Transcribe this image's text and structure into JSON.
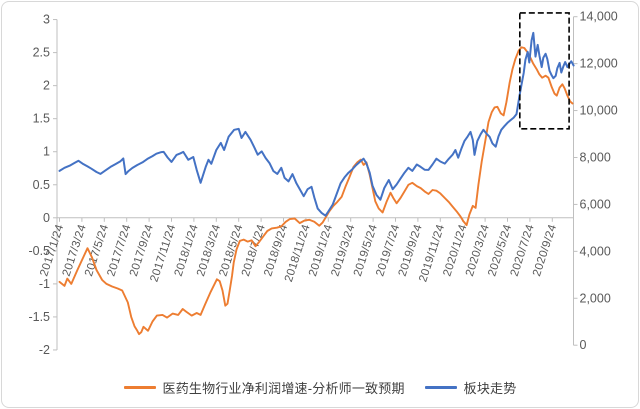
{
  "chart_data": {
    "type": "line",
    "title": "",
    "grid": false,
    "legend_position": "bottom",
    "x_tick_labels": [
      "2017/1/24",
      "2017/3/24",
      "2017/5/24",
      "2017/7/24",
      "2017/9/24",
      "2017/11/24",
      "2018/1/24",
      "2018/3/24",
      "2018/5/24",
      "2018/7/24",
      "2018/9/24",
      "2018/11/24",
      "2019/1/24",
      "2019/3/24",
      "2019/5/24",
      "2019/7/24",
      "2019/9/24",
      "2019/11/24",
      "2020/1/24",
      "2020/3/24",
      "2020/5/24",
      "2020/7/24",
      "2020/9/24"
    ],
    "x_months_per_tick": 2,
    "left_axis": {
      "min": -2,
      "max": 3,
      "step": 0.5,
      "tick_labels": [
        "3",
        "2.5",
        "2",
        "1.5",
        "1",
        "0.5",
        "0",
        "-0.5",
        "-1",
        "-1.5",
        "-2"
      ]
    },
    "right_axis": {
      "min": 0,
      "max": 14000,
      "step": 2000,
      "tick_labels": [
        "14,000",
        "12,000",
        "10,000",
        "8,000",
        "6,000",
        "4,000",
        "2,000",
        "0"
      ]
    },
    "colors": {
      "axis_line": "#bfbfbf",
      "tick_text": "#595959",
      "highlight_box": "#000000"
    },
    "highlight_box": {
      "m_start": 41.1,
      "m_end": 45.5,
      "right_min": 9220,
      "right_max": 14160
    },
    "series": [
      {
        "name": "医药生物行业净利润增速-分析师一致预期",
        "color": "#ED7D31",
        "axis": "left",
        "points": [
          [
            0.0,
            -0.97
          ],
          [
            0.45,
            -1.03
          ],
          [
            0.7,
            -0.92
          ],
          [
            1.05,
            -1.0
          ],
          [
            1.6,
            -0.79
          ],
          [
            2.2,
            -0.57
          ],
          [
            2.5,
            -0.46
          ],
          [
            2.9,
            -0.6
          ],
          [
            3.3,
            -0.79
          ],
          [
            3.8,
            -0.94
          ],
          [
            4.2,
            -1.0
          ],
          [
            4.7,
            -1.04
          ],
          [
            5.2,
            -1.07
          ],
          [
            5.6,
            -1.1
          ],
          [
            6.1,
            -1.28
          ],
          [
            6.4,
            -1.5
          ],
          [
            6.7,
            -1.64
          ],
          [
            6.95,
            -1.71
          ],
          [
            7.1,
            -1.76
          ],
          [
            7.3,
            -1.73
          ],
          [
            7.5,
            -1.65
          ],
          [
            7.9,
            -1.71
          ],
          [
            8.3,
            -1.57
          ],
          [
            8.7,
            -1.48
          ],
          [
            9.2,
            -1.47
          ],
          [
            9.6,
            -1.51
          ],
          [
            10.1,
            -1.45
          ],
          [
            10.6,
            -1.47
          ],
          [
            11.0,
            -1.38
          ],
          [
            11.3,
            -1.42
          ],
          [
            11.8,
            -1.48
          ],
          [
            12.25,
            -1.44
          ],
          [
            12.6,
            -1.47
          ],
          [
            13.0,
            -1.31
          ],
          [
            13.5,
            -1.12
          ],
          [
            14.05,
            -0.93
          ],
          [
            14.3,
            -0.96
          ],
          [
            14.55,
            -1.1
          ],
          [
            14.8,
            -1.33
          ],
          [
            15.0,
            -1.3
          ],
          [
            15.2,
            -1.1
          ],
          [
            15.4,
            -0.88
          ],
          [
            15.55,
            -0.68
          ],
          [
            15.8,
            -0.48
          ],
          [
            16.1,
            -0.35
          ],
          [
            16.45,
            -0.33
          ],
          [
            16.8,
            -0.36
          ],
          [
            17.15,
            -0.34
          ],
          [
            17.5,
            -0.43
          ],
          [
            17.85,
            -0.36
          ],
          [
            18.2,
            -0.28
          ],
          [
            18.55,
            -0.2
          ],
          [
            18.95,
            -0.16
          ],
          [
            19.4,
            -0.15
          ],
          [
            19.8,
            -0.13
          ],
          [
            20.2,
            -0.06
          ],
          [
            20.55,
            -0.02
          ],
          [
            21.0,
            -0.01
          ],
          [
            21.45,
            -0.08
          ],
          [
            21.9,
            -0.04
          ],
          [
            22.3,
            -0.03
          ],
          [
            22.75,
            -0.06
          ],
          [
            23.2,
            -0.12
          ],
          [
            23.5,
            -0.07
          ],
          [
            23.75,
            0.0
          ],
          [
            24.1,
            0.1
          ],
          [
            24.45,
            0.18
          ],
          [
            24.8,
            0.24
          ],
          [
            25.2,
            0.32
          ],
          [
            25.55,
            0.48
          ],
          [
            25.9,
            0.62
          ],
          [
            26.25,
            0.77
          ],
          [
            26.6,
            0.84
          ],
          [
            26.9,
            0.88
          ],
          [
            27.15,
            0.8
          ],
          [
            27.4,
            0.84
          ],
          [
            27.7,
            0.65
          ],
          [
            27.95,
            0.45
          ],
          [
            28.2,
            0.25
          ],
          [
            28.5,
            0.14
          ],
          [
            28.85,
            0.08
          ],
          [
            29.2,
            0.24
          ],
          [
            29.55,
            0.38
          ],
          [
            29.8,
            0.3
          ],
          [
            30.1,
            0.22
          ],
          [
            30.45,
            0.3
          ],
          [
            30.8,
            0.4
          ],
          [
            31.15,
            0.5
          ],
          [
            31.5,
            0.53
          ],
          [
            31.9,
            0.48
          ],
          [
            32.25,
            0.45
          ],
          [
            32.6,
            0.4
          ],
          [
            32.95,
            0.36
          ],
          [
            33.3,
            0.42
          ],
          [
            33.65,
            0.41
          ],
          [
            34.0,
            0.37
          ],
          [
            34.4,
            0.3
          ],
          [
            34.75,
            0.24
          ],
          [
            35.1,
            0.17
          ],
          [
            35.45,
            0.1
          ],
          [
            35.8,
            0.02
          ],
          [
            36.05,
            -0.05
          ],
          [
            36.35,
            -0.11
          ],
          [
            36.6,
            0.05
          ],
          [
            36.9,
            0.18
          ],
          [
            37.15,
            0.15
          ],
          [
            37.4,
            0.5
          ],
          [
            37.7,
            0.85
          ],
          [
            38.05,
            1.2
          ],
          [
            38.3,
            1.45
          ],
          [
            38.6,
            1.6
          ],
          [
            38.85,
            1.67
          ],
          [
            39.1,
            1.68
          ],
          [
            39.4,
            1.58
          ],
          [
            39.65,
            1.55
          ],
          [
            39.9,
            1.75
          ],
          [
            40.2,
            2.05
          ],
          [
            40.45,
            2.25
          ],
          [
            40.7,
            2.4
          ],
          [
            41.0,
            2.53
          ],
          [
            41.25,
            2.58
          ],
          [
            41.5,
            2.57
          ],
          [
            41.8,
            2.5
          ],
          [
            42.05,
            2.42
          ],
          [
            42.3,
            2.33
          ],
          [
            42.6,
            2.25
          ],
          [
            42.85,
            2.17
          ],
          [
            43.1,
            2.12
          ],
          [
            43.4,
            2.15
          ],
          [
            43.65,
            2.12
          ],
          [
            43.95,
            1.98
          ],
          [
            44.2,
            1.88
          ],
          [
            44.4,
            1.85
          ],
          [
            44.65,
            1.97
          ],
          [
            44.9,
            2.02
          ],
          [
            45.1,
            1.96
          ],
          [
            45.35,
            1.85
          ],
          [
            45.6,
            1.76
          ],
          [
            45.8,
            1.73
          ]
        ]
      },
      {
        "name": "板块走势",
        "color": "#4472C4",
        "axis": "right",
        "points": [
          [
            0.0,
            7430
          ],
          [
            0.45,
            7560
          ],
          [
            0.9,
            7650
          ],
          [
            1.35,
            7770
          ],
          [
            1.7,
            7860
          ],
          [
            2.05,
            7740
          ],
          [
            2.5,
            7620
          ],
          [
            2.85,
            7520
          ],
          [
            3.3,
            7380
          ],
          [
            3.65,
            7300
          ],
          [
            4.1,
            7450
          ],
          [
            4.55,
            7600
          ],
          [
            5.0,
            7720
          ],
          [
            5.45,
            7840
          ],
          [
            5.7,
            7960
          ],
          [
            5.9,
            7290
          ],
          [
            6.15,
            7420
          ],
          [
            6.5,
            7550
          ],
          [
            6.95,
            7680
          ],
          [
            7.4,
            7790
          ],
          [
            7.85,
            7940
          ],
          [
            8.3,
            8060
          ],
          [
            8.65,
            8160
          ],
          [
            9.1,
            8230
          ],
          [
            9.3,
            8240
          ],
          [
            9.65,
            8000
          ],
          [
            10.0,
            7810
          ],
          [
            10.45,
            8110
          ],
          [
            10.8,
            8180
          ],
          [
            11.05,
            8240
          ],
          [
            11.5,
            7900
          ],
          [
            11.95,
            8020
          ],
          [
            12.25,
            7470
          ],
          [
            12.6,
            6920
          ],
          [
            13.05,
            7600
          ],
          [
            13.3,
            7900
          ],
          [
            13.55,
            7730
          ],
          [
            14.0,
            8320
          ],
          [
            14.4,
            8620
          ],
          [
            14.7,
            8320
          ],
          [
            15.1,
            8880
          ],
          [
            15.6,
            9180
          ],
          [
            16.0,
            9220
          ],
          [
            16.25,
            8830
          ],
          [
            16.6,
            9090
          ],
          [
            17.05,
            8760
          ],
          [
            17.4,
            8420
          ],
          [
            17.7,
            8120
          ],
          [
            18.05,
            8260
          ],
          [
            18.4,
            7980
          ],
          [
            18.75,
            7760
          ],
          [
            19.1,
            7420
          ],
          [
            19.45,
            7300
          ],
          [
            19.8,
            7560
          ],
          [
            20.1,
            7130
          ],
          [
            20.45,
            6980
          ],
          [
            20.8,
            7290
          ],
          [
            21.15,
            6900
          ],
          [
            21.5,
            6610
          ],
          [
            21.8,
            6350
          ],
          [
            22.15,
            6650
          ],
          [
            22.5,
            6750
          ],
          [
            22.75,
            6300
          ],
          [
            23.05,
            5820
          ],
          [
            23.4,
            5640
          ],
          [
            23.75,
            5520
          ],
          [
            24.0,
            5700
          ],
          [
            24.4,
            6000
          ],
          [
            24.75,
            6450
          ],
          [
            25.1,
            6900
          ],
          [
            25.45,
            7150
          ],
          [
            25.8,
            7350
          ],
          [
            26.15,
            7500
          ],
          [
            26.5,
            7680
          ],
          [
            26.9,
            7850
          ],
          [
            27.15,
            7950
          ],
          [
            27.4,
            7750
          ],
          [
            27.7,
            7350
          ],
          [
            27.95,
            6800
          ],
          [
            28.3,
            6400
          ],
          [
            28.65,
            6200
          ],
          [
            29.0,
            6700
          ],
          [
            29.4,
            7040
          ],
          [
            29.75,
            6650
          ],
          [
            30.1,
            6850
          ],
          [
            30.45,
            7100
          ],
          [
            30.8,
            7350
          ],
          [
            31.15,
            7560
          ],
          [
            31.5,
            7430
          ],
          [
            31.9,
            7700
          ],
          [
            32.25,
            7600
          ],
          [
            32.6,
            7480
          ],
          [
            32.95,
            7470
          ],
          [
            33.3,
            7700
          ],
          [
            33.65,
            7950
          ],
          [
            34.0,
            7830
          ],
          [
            34.4,
            7740
          ],
          [
            34.75,
            7940
          ],
          [
            35.1,
            8120
          ],
          [
            35.35,
            8320
          ],
          [
            35.6,
            7990
          ],
          [
            35.9,
            8400
          ],
          [
            36.15,
            8700
          ],
          [
            36.45,
            8900
          ],
          [
            36.7,
            9090
          ],
          [
            36.9,
            8750
          ],
          [
            37.05,
            8110
          ],
          [
            37.3,
            8700
          ],
          [
            37.6,
            8990
          ],
          [
            37.85,
            9180
          ],
          [
            38.15,
            9000
          ],
          [
            38.4,
            8880
          ],
          [
            38.65,
            8600
          ],
          [
            38.95,
            8460
          ],
          [
            39.2,
            8900
          ],
          [
            39.45,
            9180
          ],
          [
            39.75,
            9350
          ],
          [
            40.0,
            9480
          ],
          [
            40.25,
            9580
          ],
          [
            40.55,
            9700
          ],
          [
            40.8,
            9850
          ],
          [
            41.05,
            10580
          ],
          [
            41.25,
            11100
          ],
          [
            41.45,
            11600
          ],
          [
            41.6,
            12160
          ],
          [
            41.8,
            12500
          ],
          [
            41.95,
            12050
          ],
          [
            42.15,
            13000
          ],
          [
            42.3,
            13310
          ],
          [
            42.5,
            12300
          ],
          [
            42.7,
            12800
          ],
          [
            42.85,
            12350
          ],
          [
            43.05,
            11850
          ],
          [
            43.2,
            12250
          ],
          [
            43.4,
            12420
          ],
          [
            43.55,
            12200
          ],
          [
            43.75,
            11700
          ],
          [
            43.95,
            11500
          ],
          [
            44.1,
            11380
          ],
          [
            44.3,
            11480
          ],
          [
            44.45,
            11800
          ],
          [
            44.65,
            12030
          ],
          [
            44.8,
            11620
          ],
          [
            45.0,
            11900
          ],
          [
            45.15,
            12070
          ],
          [
            45.35,
            11850
          ],
          [
            45.5,
            11980
          ],
          [
            45.7,
            12100
          ],
          [
            45.9,
            11920
          ]
        ]
      }
    ]
  }
}
